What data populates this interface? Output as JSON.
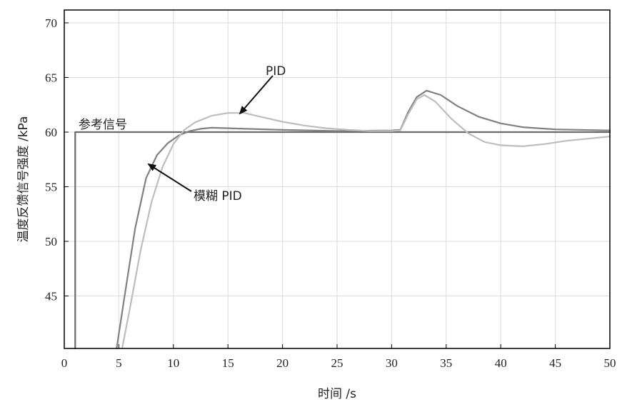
{
  "chart_data": {
    "type": "line",
    "title": "",
    "xlabel": "时间 /s",
    "ylabel": "温度反馈信号强度 /kPa",
    "xlim": [
      0,
      50
    ],
    "ylim": [
      40,
      71
    ],
    "x_ticks": [
      0,
      5,
      10,
      15,
      20,
      25,
      30,
      35,
      40,
      45,
      50
    ],
    "y_ticks": [
      45,
      50,
      55,
      60,
      65,
      70
    ],
    "grid": true,
    "annotations": {
      "reference": "参考信号",
      "pid": "PID",
      "fuzzy_pid": "模糊 PID"
    },
    "series": [
      {
        "name": "参考信号",
        "color": "#6a6a6a",
        "points": [
          [
            1.0,
            40.0
          ],
          [
            1.0,
            60.0
          ],
          [
            50.0,
            60.0
          ]
        ]
      },
      {
        "name": "模糊 PID",
        "color": "#808080",
        "points": [
          [
            4.8,
            40.0
          ],
          [
            5.5,
            44.8
          ],
          [
            6.5,
            51.2
          ],
          [
            7.5,
            55.8
          ],
          [
            8.5,
            57.9
          ],
          [
            9.5,
            59.0
          ],
          [
            10.5,
            59.7
          ],
          [
            11.5,
            60.1
          ],
          [
            12.5,
            60.3
          ],
          [
            13.5,
            60.4
          ],
          [
            15.0,
            60.35
          ],
          [
            20.0,
            60.2
          ],
          [
            25.0,
            60.1
          ],
          [
            30.0,
            60.15
          ],
          [
            30.8,
            60.2
          ],
          [
            31.5,
            61.8
          ],
          [
            32.3,
            63.2
          ],
          [
            33.2,
            63.8
          ],
          [
            34.5,
            63.4
          ],
          [
            36.0,
            62.4
          ],
          [
            38.0,
            61.4
          ],
          [
            40.0,
            60.8
          ],
          [
            42.0,
            60.45
          ],
          [
            45.0,
            60.25
          ],
          [
            50.0,
            60.15
          ]
        ]
      },
      {
        "name": "PID",
        "color": "#bdbdbd",
        "points": [
          [
            5.3,
            40.0
          ],
          [
            6.0,
            43.8
          ],
          [
            7.0,
            49.2
          ],
          [
            8.0,
            53.6
          ],
          [
            9.0,
            56.8
          ],
          [
            10.0,
            58.9
          ],
          [
            11.0,
            60.2
          ],
          [
            12.0,
            60.9
          ],
          [
            13.5,
            61.5
          ],
          [
            15.0,
            61.75
          ],
          [
            16.5,
            61.75
          ],
          [
            18.0,
            61.4
          ],
          [
            20.0,
            60.95
          ],
          [
            22.0,
            60.6
          ],
          [
            24.0,
            60.35
          ],
          [
            26.0,
            60.2
          ],
          [
            28.0,
            60.1
          ],
          [
            30.0,
            60.1
          ],
          [
            30.8,
            60.15
          ],
          [
            31.5,
            61.6
          ],
          [
            32.3,
            63.0
          ],
          [
            33.0,
            63.4
          ],
          [
            34.0,
            62.8
          ],
          [
            35.5,
            61.2
          ],
          [
            37.0,
            59.9
          ],
          [
            38.5,
            59.1
          ],
          [
            40.0,
            58.8
          ],
          [
            42.0,
            58.7
          ],
          [
            44.0,
            58.9
          ],
          [
            46.0,
            59.2
          ],
          [
            48.0,
            59.4
          ],
          [
            50.0,
            59.6
          ]
        ]
      }
    ]
  }
}
